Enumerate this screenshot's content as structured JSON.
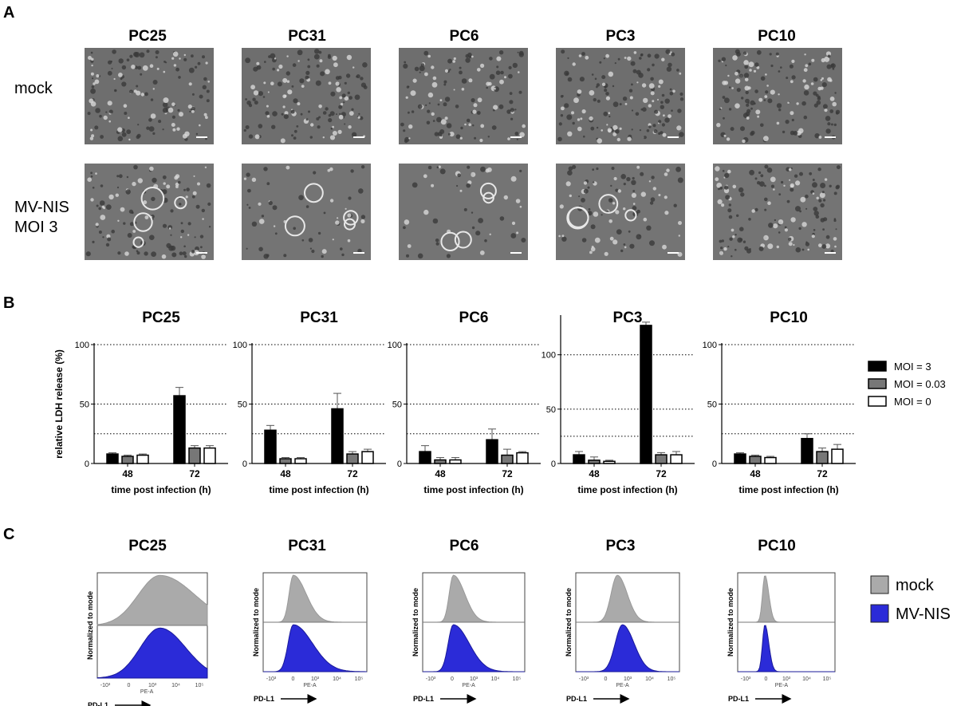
{
  "panels": {
    "a": "A",
    "b": "B",
    "c": "C"
  },
  "cell_lines": [
    "PC25",
    "PC31",
    "PC6",
    "PC3",
    "PC10"
  ],
  "row_labels": {
    "mock": "mock",
    "mvnis_line1": "MV-NIS",
    "mvnis_line2": "MOI 3"
  },
  "micro_colors": {
    "mock": "#6e6e6e",
    "mvnis": "#747474"
  },
  "lines": {
    "PC25": {
      "coverage_mock": 0.9,
      "coverage_mvnis": 0.75
    },
    "PC31": {
      "coverage_mock": 0.9,
      "coverage_mvnis": 0.35
    },
    "PC6": {
      "coverage_mock": 0.8,
      "coverage_mvnis": 0.3
    },
    "PC3": {
      "coverage_mock": 0.95,
      "coverage_mvnis": 0.55
    },
    "PC10": {
      "coverage_mock": 0.95,
      "coverage_mvnis": 0.9
    }
  },
  "chart_data": [
    {
      "type": "bar",
      "panel": "B",
      "title": "PC25",
      "categories": [
        "48",
        "72"
      ],
      "xlabel": "time post infection (h)",
      "ylabel": "relative LDH release (%)",
      "yticks": [
        0,
        50,
        100
      ],
      "ylim": [
        0,
        100
      ],
      "reference_lines": [
        25,
        50,
        100
      ],
      "series": [
        {
          "name": "MOI = 3",
          "values": [
            8,
            57
          ],
          "errors": [
            1,
            7
          ],
          "color": "#000000"
        },
        {
          "name": "MOI = 0.03",
          "values": [
            6,
            13
          ],
          "errors": [
            1,
            2
          ],
          "color": "#777777"
        },
        {
          "name": "MOI = 0",
          "values": [
            7,
            13
          ],
          "errors": [
            1,
            2
          ],
          "color": "#ffffff"
        }
      ]
    },
    {
      "type": "bar",
      "panel": "B",
      "title": "PC31",
      "categories": [
        "48",
        "72"
      ],
      "xlabel": "time post infection (h)",
      "ylabel": "",
      "yticks": [
        0,
        50,
        100
      ],
      "ylim": [
        0,
        100
      ],
      "reference_lines": [
        25,
        50,
        100
      ],
      "series": [
        {
          "name": "MOI = 3",
          "values": [
            28,
            46
          ],
          "errors": [
            4,
            13
          ],
          "color": "#000000"
        },
        {
          "name": "MOI = 0.03",
          "values": [
            4,
            8
          ],
          "errors": [
            1,
            2
          ],
          "color": "#777777"
        },
        {
          "name": "MOI = 0",
          "values": [
            4,
            10
          ],
          "errors": [
            1,
            2
          ],
          "color": "#ffffff"
        }
      ]
    },
    {
      "type": "bar",
      "panel": "B",
      "title": "PC6",
      "categories": [
        "48",
        "72"
      ],
      "xlabel": "time post infection (h)",
      "ylabel": "",
      "yticks": [
        0,
        50,
        100
      ],
      "ylim": [
        0,
        100
      ],
      "reference_lines": [
        25,
        50,
        100
      ],
      "series": [
        {
          "name": "MOI = 3",
          "values": [
            10,
            20
          ],
          "errors": [
            5,
            9
          ],
          "color": "#000000"
        },
        {
          "name": "MOI = 0.03",
          "values": [
            3,
            7
          ],
          "errors": [
            2,
            5
          ],
          "color": "#777777"
        },
        {
          "name": "MOI = 0",
          "values": [
            3,
            9
          ],
          "errors": [
            2,
            1
          ],
          "color": "#ffffff"
        }
      ]
    },
    {
      "type": "bar",
      "panel": "B",
      "title": "PC3",
      "categories": [
        "48",
        "72"
      ],
      "xlabel": "time post infection (h)",
      "ylabel": "",
      "yticks": [
        0,
        50,
        100
      ],
      "ylim": [
        0,
        135
      ],
      "reference_lines": [
        25,
        50,
        100
      ],
      "series": [
        {
          "name": "MOI = 3",
          "values": [
            8,
            127
          ],
          "errors": [
            3,
            3
          ],
          "color": "#000000"
        },
        {
          "name": "MOI = 0.03",
          "values": [
            3,
            8
          ],
          "errors": [
            3,
            2
          ],
          "color": "#777777"
        },
        {
          "name": "MOI = 0",
          "values": [
            2,
            8
          ],
          "errors": [
            1,
            3
          ],
          "color": "#ffffff"
        }
      ]
    },
    {
      "type": "bar",
      "panel": "B",
      "title": "PC10",
      "categories": [
        "48",
        "72"
      ],
      "xlabel": "time post infection (h)",
      "ylabel": "",
      "yticks": [
        0,
        50,
        100
      ],
      "ylim": [
        0,
        100
      ],
      "reference_lines": [
        25,
        50,
        100
      ],
      "series": [
        {
          "name": "MOI = 3",
          "values": [
            8,
            21
          ],
          "errors": [
            1,
            4
          ],
          "color": "#000000"
        },
        {
          "name": "MOI = 0.03",
          "values": [
            6,
            10
          ],
          "errors": [
            1,
            3
          ],
          "color": "#777777"
        },
        {
          "name": "MOI = 0",
          "values": [
            5,
            12
          ],
          "errors": [
            1,
            4
          ],
          "color": "#ffffff"
        }
      ]
    }
  ],
  "bar_legend": [
    {
      "label": "MOI = 3",
      "color": "#000000"
    },
    {
      "label": "MOI = 0.03",
      "color": "#777777"
    },
    {
      "label": "MOI = 0",
      "color": "#ffffff"
    }
  ],
  "flow": {
    "ylabel": "Normalized to mode",
    "axis_label": "PE-A",
    "marker_label": "PD-L1",
    "tick_labels": [
      "-10³",
      "0",
      "10³",
      "10⁴",
      "10⁵"
    ],
    "tick_labels_pc3": [
      "-10³",
      "0",
      "10³",
      "10⁴",
      "10⁵"
    ],
    "legend": [
      {
        "label": "mock",
        "color": "#aaaaaa"
      },
      {
        "label": "MV-NIS",
        "color": "#2b2bd8"
      }
    ],
    "histograms": [
      {
        "line": "PC25",
        "mock": {
          "peak": 0.57,
          "width": 0.2,
          "skew": 0.1
        },
        "mvnis": {
          "peak": 0.57,
          "width": 0.18,
          "skew": 0.05
        }
      },
      {
        "line": "PC31",
        "mock": {
          "peak": 0.29,
          "width": 0.04,
          "skew": 0.35
        },
        "mvnis": {
          "peak": 0.29,
          "width": 0.05,
          "skew": 0.45
        }
      },
      {
        "line": "PC6",
        "mock": {
          "peak": 0.3,
          "width": 0.04,
          "skew": 0.3
        },
        "mvnis": {
          "peak": 0.3,
          "width": 0.05,
          "skew": 0.35
        }
      },
      {
        "line": "PC3",
        "mock": {
          "peak": 0.4,
          "width": 0.06,
          "skew": 0.1
        },
        "mvnis": {
          "peak": 0.45,
          "width": 0.07,
          "skew": 0.1
        }
      },
      {
        "line": "PC10",
        "mock": {
          "peak": 0.28,
          "width": 0.025,
          "skew": 0.1
        },
        "mvnis": {
          "peak": 0.28,
          "width": 0.025,
          "skew": 0.1
        }
      }
    ]
  }
}
